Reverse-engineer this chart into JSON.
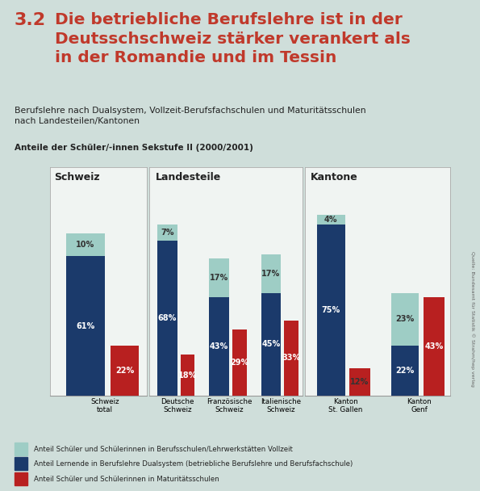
{
  "title_number": "3.2",
  "title_text": "Die betriebliche Berufslehre ist in der\nDeutsschschweiz stärker verankert als\nin der Romandie und im Tessin",
  "subtitle1": "Berufslehre nach Dualsystem, Vollzeit-Berufsfachschulen und Maturitätsschulen\nnach Landesteilen/Kantonen",
  "subtitle2": "Anteile der Schüler/-innen Sekstufe II (2000/2001)",
  "background_color": "#cfdeda",
  "panel_bg": "#f0f4f2",
  "color_vollzeit": "#9ecdc5",
  "color_dual": "#1b3a6b",
  "color_matur": "#b82020",
  "groups": [
    {
      "label": "Schweiz",
      "bars": [
        {
          "category": "Schweiz\ntotal",
          "vollzeit": 10,
          "dual": 61,
          "matur": 22
        }
      ]
    },
    {
      "label": "Landesteile",
      "bars": [
        {
          "category": "Deutsche\nSchweiz",
          "vollzeit": 7,
          "dual": 68,
          "matur": 18
        },
        {
          "category": "Französische\nSchweiz",
          "vollzeit": 17,
          "dual": 43,
          "matur": 29
        },
        {
          "category": "Italienische\nSchweiz",
          "vollzeit": 17,
          "dual": 45,
          "matur": 33
        }
      ]
    },
    {
      "label": "Kantone",
      "bars": [
        {
          "category": "Kanton\nSt. Gallen",
          "vollzeit": 4,
          "dual": 75,
          "matur": 12
        },
        {
          "category": "Kanton\nGenf",
          "vollzeit": 23,
          "dual": 22,
          "matur": 43
        }
      ]
    }
  ],
  "legend": [
    "Anteil Schüler und Schülerinnen in Berufsschulen/Lehrwerkstätten Vollzeit",
    "Anteil Lernende in Berufslehre Dualsystem (betriebliche Berufslehre und Berufsfachschule)",
    "Anteil Schüler und Schülerinnen in Maturitätsschulen"
  ],
  "source": "Quelle: Bundesamt für Statistik © Strahm/hep verlag"
}
